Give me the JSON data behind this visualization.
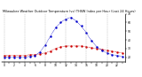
{
  "title": "Milwaukee Weather Outdoor Temperature (vs) THSW Index per Hour (Last 24 Hours)",
  "hours": [
    0,
    1,
    2,
    3,
    4,
    5,
    6,
    7,
    8,
    9,
    10,
    11,
    12,
    13,
    14,
    15,
    16,
    17,
    18,
    19,
    20,
    21,
    22,
    23
  ],
  "temp": [
    22,
    22,
    22,
    22,
    22,
    23,
    23,
    24,
    25,
    27,
    30,
    32,
    33,
    33,
    33,
    33,
    32,
    31,
    30,
    29,
    28,
    27,
    26,
    25
  ],
  "thsw": [
    20,
    20,
    20,
    20,
    20,
    21,
    22,
    26,
    34,
    44,
    54,
    60,
    64,
    66,
    62,
    56,
    48,
    39,
    32,
    28,
    25,
    23,
    22,
    21
  ],
  "temp_color": "#cc0000",
  "thsw_color": "#0000cc",
  "grid_color": "#999999",
  "bg_color": "#ffffff",
  "ylim": [
    15,
    70
  ],
  "yticks_right": [
    20,
    30,
    40,
    50,
    60,
    70
  ],
  "title_fontsize": 2.5,
  "tick_fontsize": 2.2,
  "linewidth": 0.8,
  "markersize": 1.5
}
